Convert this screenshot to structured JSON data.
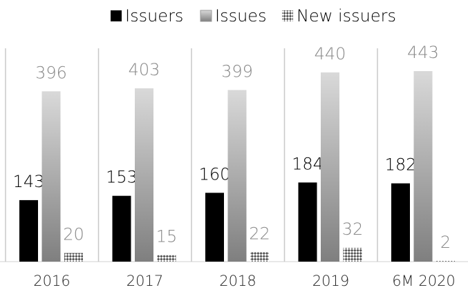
{
  "chart_data": {
    "type": "bar",
    "categories": [
      "2016",
      "2017",
      "2018",
      "2019",
      "6M 2020"
    ],
    "series": [
      {
        "name": "Issuers",
        "color": "#000000",
        "values": [
          143,
          153,
          160,
          184,
          182
        ]
      },
      {
        "name": "Issues",
        "color": "#bfbfbf",
        "values": [
          396,
          403,
          399,
          440,
          443
        ]
      },
      {
        "name": "New issuers",
        "color": "#555555",
        "values": [
          20,
          15,
          22,
          32,
          2
        ]
      }
    ],
    "legend": "top"
  }
}
